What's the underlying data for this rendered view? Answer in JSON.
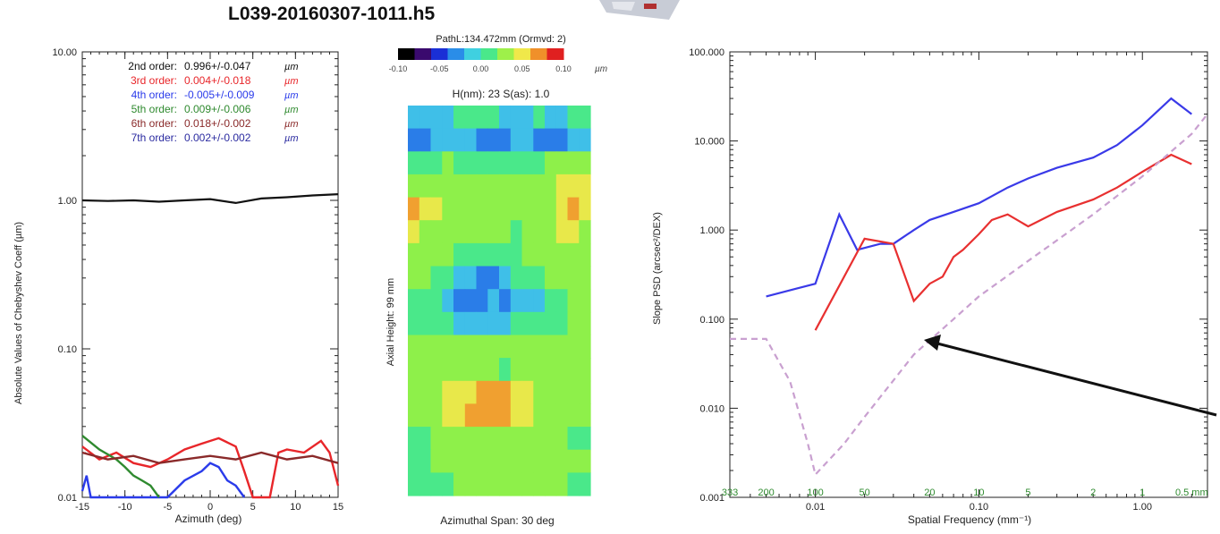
{
  "page": {
    "title": "L039-20160307-1011.h5"
  },
  "chart_data": [
    {
      "type": "line",
      "ylabel": "Absolute Values of Chebyshev Coeff (µm)",
      "xlabel": "Azimuth (deg)",
      "yscale": "log",
      "ylim": [
        0.01,
        10.0
      ],
      "xlim": [
        -15,
        15
      ],
      "y_ticks": [
        "10.00",
        "1.00",
        "0.10",
        "0.01"
      ],
      "x_ticks": [
        "-15",
        "-10",
        "-5",
        "0",
        "5",
        "10",
        "15"
      ],
      "legend": [
        {
          "label": "2nd order:",
          "value": "0.996+/-0.047",
          "unit": "µm",
          "color": "#111111"
        },
        {
          "label": "3rd order:",
          "value": "0.004+/-0.018",
          "unit": "µm",
          "color": "#e8262a"
        },
        {
          "label": "4th order:",
          "value": "-0.005+/-0.009",
          "unit": "µm",
          "color": "#2a3bea"
        },
        {
          "label": "5th order:",
          "value": "0.009+/-0.006",
          "unit": "µm",
          "color": "#2f8a2f"
        },
        {
          "label": "6th order:",
          "value": "0.018+/-0.002",
          "unit": "µm",
          "color": "#8a2a2a"
        },
        {
          "label": "7th order:",
          "value": "0.002+/-0.002",
          "unit": "µm",
          "color": "#2a2aa0"
        }
      ],
      "series": [
        {
          "color": "#111111",
          "x": [
            -15,
            -12,
            -9,
            -6,
            -3,
            0,
            3,
            6,
            9,
            12,
            15
          ],
          "y": [
            1.0,
            0.99,
            1.0,
            0.98,
            1.0,
            1.02,
            0.96,
            1.03,
            1.05,
            1.08,
            1.1
          ]
        },
        {
          "color": "#e8262a",
          "x": [
            -15,
            -13,
            -11,
            -9,
            -7,
            -5,
            -3,
            -1,
            1,
            3,
            4,
            5,
            7,
            8,
            9,
            11,
            13,
            14,
            15
          ],
          "y": [
            0.022,
            0.018,
            0.02,
            0.017,
            0.016,
            0.018,
            0.021,
            0.023,
            0.025,
            0.022,
            0.015,
            0.01,
            0.01,
            0.02,
            0.021,
            0.02,
            0.024,
            0.02,
            0.012
          ]
        },
        {
          "color": "#2a3bea",
          "x": [
            -15,
            -14.5,
            -14,
            -5,
            -3,
            -1,
            0,
            1,
            2,
            3,
            4
          ],
          "y": [
            0.011,
            0.014,
            0.01,
            0.01,
            0.013,
            0.015,
            0.017,
            0.016,
            0.013,
            0.012,
            0.01
          ]
        },
        {
          "color": "#2f8a2f",
          "x": [
            -15,
            -13,
            -11,
            -10,
            -9,
            -8,
            -7,
            -6
          ],
          "y": [
            0.026,
            0.021,
            0.018,
            0.016,
            0.014,
            0.013,
            0.012,
            0.01
          ]
        },
        {
          "color": "#8a2a2a",
          "x": [
            -15,
            -12,
            -9,
            -6,
            -3,
            0,
            3,
            6,
            9,
            12,
            15
          ],
          "y": [
            0.02,
            0.018,
            0.019,
            0.017,
            0.018,
            0.019,
            0.018,
            0.02,
            0.018,
            0.019,
            0.017
          ]
        }
      ]
    },
    {
      "type": "heatmap",
      "header": "PathL:134.472mm  (Ormvd: 2)",
      "colorbar_ticks": [
        "-0.10",
        "-0.05",
        "0.00",
        "0.05",
        "0.10"
      ],
      "colorbar_unit": "µm",
      "stats": "H(nm):  23    S(as): 1.0",
      "ylabel": "Axial Height:    99 mm",
      "xlabel": "Azimuthal Span:   30 deg",
      "colors": [
        "#1a2fd6",
        "#2a7de8",
        "#3fbfe8",
        "#4ae88a",
        "#8ef04a",
        "#e8e84a",
        "#f0a030",
        "#e03020"
      ],
      "rows": [
        "2222333322232233",
        "1122221112211122",
        "3334333333334444",
        "4444444444444555",
        "6554444444444565",
        "5444444443444554",
        "4444333333444444",
        "4433221123334444",
        "3332111212223344",
        "3333222223333344",
        "4444444444444444",
        "4444444434444444",
        "4445556665544444",
        "4445566665544444",
        "3344444444444433",
        "3344444444444444",
        "3333444444444433"
      ]
    },
    {
      "type": "line",
      "ylabel": "Slope PSD (arcsec²/DEX)",
      "xlabel": "Spatial Frequency (mm⁻¹)",
      "xscale": "log",
      "yscale": "log",
      "xlim": [
        0.003,
        2.5
      ],
      "ylim": [
        0.001,
        100.0
      ],
      "y_ticks": [
        "100.000",
        "10.000",
        "1.000",
        "0.100",
        "0.010",
        "0.001"
      ],
      "x_ticks": [
        "0.01",
        "0.10",
        "1.00"
      ],
      "top_axis_labels": [
        "333",
        "200",
        "100",
        "50",
        "20",
        "10",
        "5",
        "2",
        "1",
        "0.5 mm"
      ],
      "series": [
        {
          "color": "#3a3ae8",
          "x": [
            0.005,
            0.01,
            0.014,
            0.018,
            0.025,
            0.03,
            0.04,
            0.05,
            0.07,
            0.1,
            0.15,
            0.2,
            0.3,
            0.5,
            0.7,
            1.0,
            1.5,
            2.0
          ],
          "y": [
            0.18,
            0.25,
            1.5,
            0.6,
            0.7,
            0.7,
            1.0,
            1.3,
            1.6,
            2.0,
            3.0,
            3.8,
            5.0,
            6.5,
            9.0,
            15.0,
            30.0,
            20.0
          ]
        },
        {
          "color": "#e83030",
          "x": [
            0.01,
            0.02,
            0.03,
            0.04,
            0.05,
            0.06,
            0.07,
            0.08,
            0.1,
            0.12,
            0.15,
            0.2,
            0.3,
            0.5,
            0.7,
            1.0,
            1.5,
            2.0
          ],
          "y": [
            0.075,
            0.8,
            0.7,
            0.16,
            0.25,
            0.3,
            0.5,
            0.6,
            0.9,
            1.3,
            1.5,
            1.1,
            1.6,
            2.2,
            3.0,
            4.5,
            7.0,
            5.5
          ]
        },
        {
          "color": "#c9a0d0",
          "dash": true,
          "x": [
            0.003,
            0.005,
            0.007,
            0.009,
            0.01,
            0.015,
            0.02,
            0.04,
            0.07,
            0.1,
            0.2,
            0.5,
            1.0,
            2.0,
            2.5
          ],
          "y": [
            0.06,
            0.06,
            0.02,
            0.004,
            0.0018,
            0.004,
            0.008,
            0.04,
            0.1,
            0.18,
            0.45,
            1.5,
            4.0,
            12.0,
            20.0
          ]
        }
      ]
    }
  ]
}
